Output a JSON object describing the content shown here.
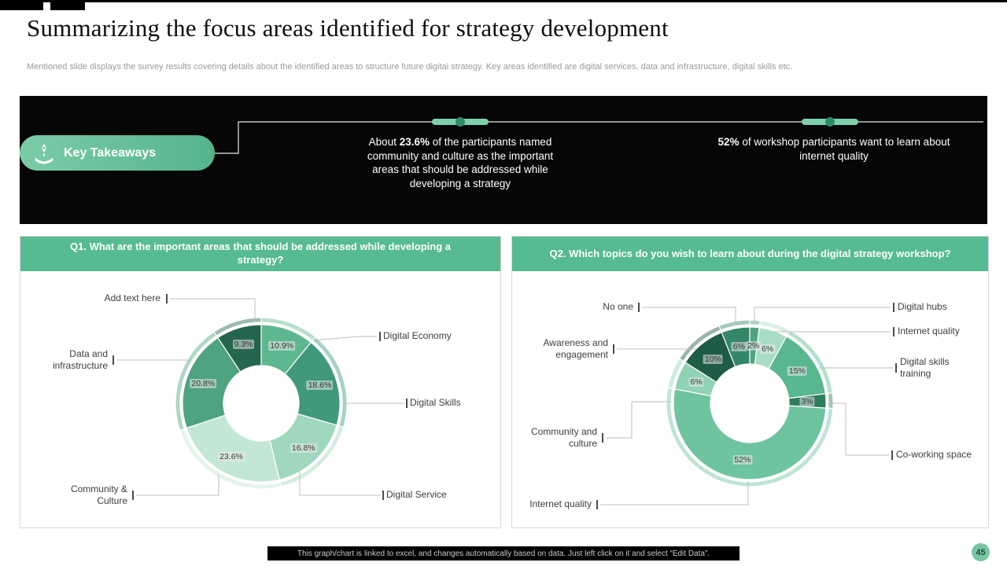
{
  "slide": {
    "title": "Summarizing the focus areas identified for strategy development",
    "subtitle": "Mentioned slide displays the survey results covering details about the identified areas to structure future digital strategy. Key areas identified are digital services, data and infrastructure, digital skills etc.",
    "footer_note": "This graph/chart is linked to excel, and changes automatically based on data. Just left click on it and select “Edit Data”.",
    "page_number": "45"
  },
  "banner": {
    "pill_label": "Key Takeaways",
    "takeaways": [
      {
        "pre": "About ",
        "bold": "23.6%",
        "post": " of the participants named community and culture as the important areas that should be addressed while developing a strategy"
      },
      {
        "pre": "",
        "bold": "52%",
        "post": " of workshop participants want to learn about internet quality"
      }
    ]
  },
  "chart_data": [
    {
      "type": "pie",
      "variant": "donut",
      "title": "Q1. What are the important areas that should be addressed while developing a strategy?",
      "legend_position": "callouts",
      "segments": [
        {
          "label": "Digital Economy",
          "value": 10.9,
          "display": "10.9%",
          "color": "#5eb88f"
        },
        {
          "label": "Digital Skills",
          "value": 18.6,
          "display": "18.6%",
          "color": "#3f997a"
        },
        {
          "label": "Digital Service",
          "value": 16.8,
          "display": "16.8%",
          "color": "#a0d8bd"
        },
        {
          "label": "Community & Culture",
          "value": 23.6,
          "display": "23.6%",
          "color": "#c3e7d5"
        },
        {
          "label": "Data and infrastructure",
          "value": 20.8,
          "display": "20.8%",
          "color": "#4ea381"
        },
        {
          "label": "Add text here",
          "value": 9.3,
          "display": "9.3%",
          "color": "#27664e"
        }
      ]
    },
    {
      "type": "pie",
      "variant": "donut",
      "title": "Q2. Which topics do you wish to learn about during the digital strategy workshop?",
      "legend_position": "callouts",
      "segments": [
        {
          "label": "Digital hubs",
          "value": 2,
          "display": "2%",
          "color": "#4ea381"
        },
        {
          "label": "Internet quality",
          "value": 6,
          "display": "6%",
          "color": "#a8dcc6"
        },
        {
          "label": "Digital skills training",
          "value": 15,
          "display": "15%",
          "color": "#58b78e"
        },
        {
          "label": "Co-working space",
          "value": 3,
          "display": "3%",
          "color": "#2f7c5f"
        },
        {
          "label": "Internet quality",
          "value": 52,
          "display": "52%",
          "color": "#6fc4a0"
        },
        {
          "label": "Community and culture",
          "value": 6,
          "display": "6%",
          "color": "#8fd2b4"
        },
        {
          "label": "Awareness and engagement",
          "value": 10,
          "display": "10%",
          "color": "#1f5c45"
        },
        {
          "label": "No one",
          "value": 6,
          "display": "6%",
          "color": "#35876a"
        }
      ]
    }
  ]
}
